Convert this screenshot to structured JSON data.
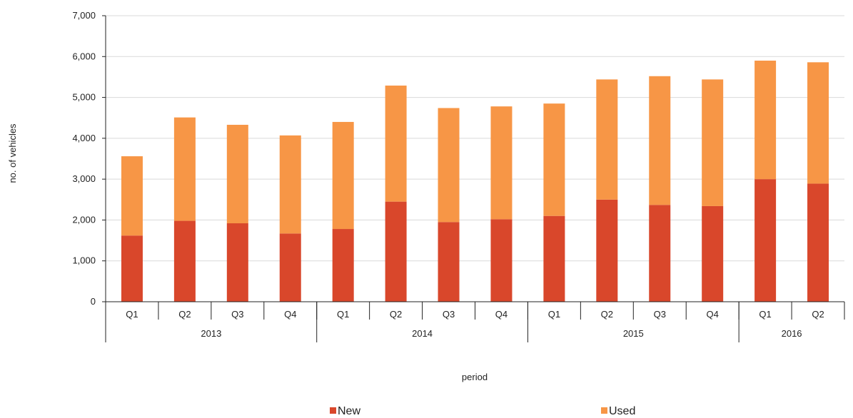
{
  "chart_data": {
    "type": "bar",
    "stacked": true,
    "xlabel": "period",
    "ylabel": "no. of vehicles",
    "ylim": [
      0,
      7000
    ],
    "yticks": [
      0,
      1000,
      2000,
      3000,
      4000,
      5000,
      6000,
      7000
    ],
    "ytick_labels": [
      "0",
      "1,000",
      "2,000",
      "3,000",
      "4,000",
      "5,000",
      "6,000",
      "7,000"
    ],
    "grid": true,
    "legend_position": "bottom",
    "categories": [
      "Q1",
      "Q2",
      "Q3",
      "Q4",
      "Q1",
      "Q2",
      "Q3",
      "Q4",
      "Q1",
      "Q2",
      "Q3",
      "Q4",
      "Q1",
      "Q2"
    ],
    "groups": [
      {
        "label": "2013",
        "count": 4
      },
      {
        "label": "2014",
        "count": 4
      },
      {
        "label": "2015",
        "count": 4
      },
      {
        "label": "2016",
        "count": 2
      }
    ],
    "series": [
      {
        "name": "New",
        "color": "#d9472b",
        "values": [
          1620,
          1980,
          1920,
          1670,
          1780,
          2450,
          1950,
          2020,
          2100,
          2500,
          2370,
          2340,
          3000,
          2890
        ]
      },
      {
        "name": "Used",
        "color": "#f79646",
        "values": [
          1940,
          2530,
          2410,
          2400,
          2620,
          2840,
          2790,
          2760,
          2750,
          2940,
          3150,
          3100,
          2900,
          2970
        ]
      }
    ]
  }
}
